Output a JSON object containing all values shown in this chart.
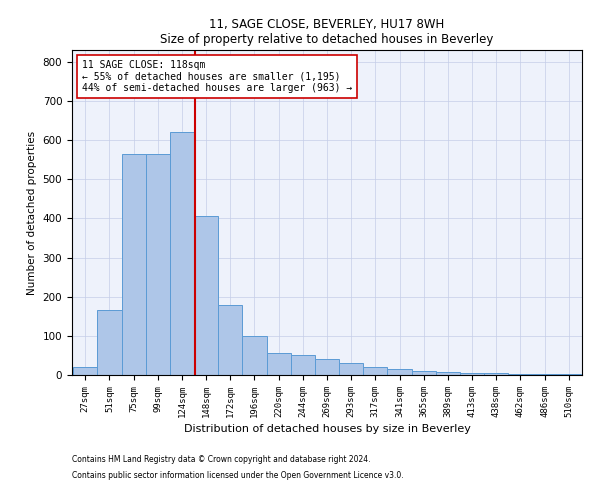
{
  "title1": "11, SAGE CLOSE, BEVERLEY, HU17 8WH",
  "title2": "Size of property relative to detached houses in Beverley",
  "xlabel": "Distribution of detached houses by size in Beverley",
  "ylabel": "Number of detached properties",
  "bin_labels": [
    "27sqm",
    "51sqm",
    "75sqm",
    "99sqm",
    "124sqm",
    "148sqm",
    "172sqm",
    "196sqm",
    "220sqm",
    "244sqm",
    "269sqm",
    "293sqm",
    "317sqm",
    "341sqm",
    "365sqm",
    "389sqm",
    "413sqm",
    "438sqm",
    "462sqm",
    "486sqm",
    "510sqm"
  ],
  "bar_heights": [
    20,
    165,
    565,
    565,
    620,
    405,
    180,
    100,
    55,
    50,
    40,
    30,
    20,
    15,
    10,
    8,
    5,
    5,
    3,
    3,
    2
  ],
  "bar_color": "#aec6e8",
  "bar_edge_color": "#5b9bd5",
  "bar_width": 1.0,
  "vline_x": 4.54,
  "vline_color": "#cc0000",
  "annotation_line1": "11 SAGE CLOSE: 118sqm",
  "annotation_line2": "← 55% of detached houses are smaller (1,195)",
  "annotation_line3": "44% of semi-detached houses are larger (963) →",
  "ylim": [
    0,
    830
  ],
  "yticks": [
    0,
    100,
    200,
    300,
    400,
    500,
    600,
    700,
    800
  ],
  "footnote1": "Contains HM Land Registry data © Crown copyright and database right 2024.",
  "footnote2": "Contains public sector information licensed under the Open Government Licence v3.0.",
  "background_color": "#eef2fb",
  "grid_color": "#c5cde8"
}
